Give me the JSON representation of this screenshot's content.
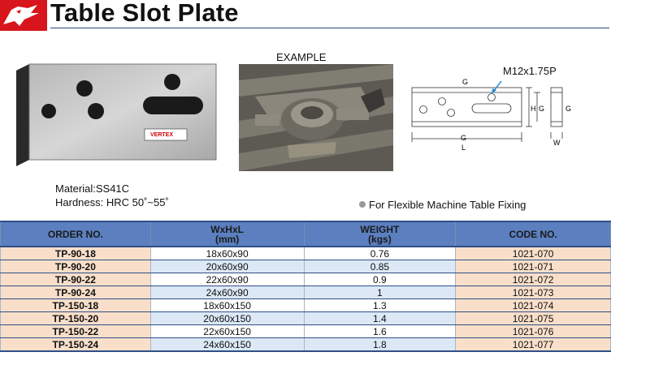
{
  "header": {
    "title": "Table Slot Plate"
  },
  "product": {
    "brand_plate": "VERTEX"
  },
  "example": {
    "label": "EXAMPLE"
  },
  "drawing": {
    "thread": "M12x1.75P",
    "dim_G": "G",
    "dim_H": "H",
    "dim_L": "L",
    "dim_W": "W"
  },
  "specs": {
    "material": "Material:SS41C",
    "hardness": "Hardness: HRC 50˚~55˚"
  },
  "feature": {
    "text": "For Flexible Machine Table Fixing"
  },
  "table": {
    "headers": [
      {
        "line1": "ORDER NO.",
        "line2": ""
      },
      {
        "line1": "WxHxL",
        "line2": "(mm)"
      },
      {
        "line1": "WEIGHT",
        "line2": "(kgs)"
      },
      {
        "line1": "CODE NO.",
        "line2": ""
      }
    ],
    "rows": [
      [
        "TP-90-18",
        "18x60x90",
        "0.76",
        "1021-070"
      ],
      [
        "TP-90-20",
        "20x60x90",
        "0.85",
        "1021-071"
      ],
      [
        "TP-90-22",
        "22x60x90",
        "0.9",
        "1021-072"
      ],
      [
        "TP-90-24",
        "24x60x90",
        "1",
        "1021-073"
      ],
      [
        "TP-150-18",
        "18x60x150",
        "1.3",
        "1021-074"
      ],
      [
        "TP-150-20",
        "20x60x150",
        "1.4",
        "1021-075"
      ],
      [
        "TP-150-22",
        "22x60x150",
        "1.6",
        "1021-076"
      ],
      [
        "TP-150-24",
        "24x60x150",
        "1.8",
        "1021-077"
      ]
    ]
  }
}
